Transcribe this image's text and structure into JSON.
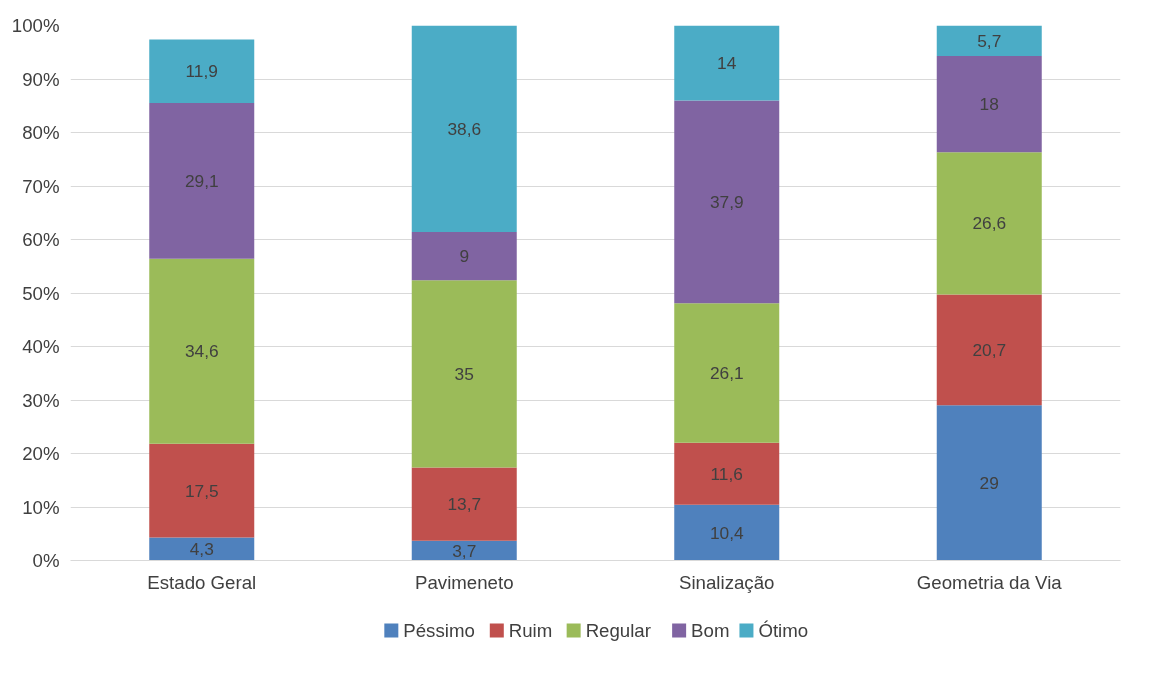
{
  "chart_data": {
    "type": "bar",
    "stacked": true,
    "categories": [
      "Estado Geral",
      "Pavimeneto",
      "Sinalização",
      "Geometria da Via"
    ],
    "series": [
      {
        "name": "Péssimo",
        "color": "#4f81bd",
        "values": [
          4.3,
          3.7,
          10.4,
          29
        ],
        "value_labels": [
          "4,3",
          "3,7",
          "10,4",
          "29"
        ]
      },
      {
        "name": "Ruim",
        "color": "#c0504d",
        "values": [
          17.5,
          13.7,
          11.6,
          20.7
        ],
        "value_labels": [
          "17,5",
          "13,7",
          "11,6",
          "20,7"
        ]
      },
      {
        "name": "Regular",
        "color": "#9bbb59",
        "values": [
          34.6,
          35,
          26.1,
          26.6
        ],
        "value_labels": [
          "34,6",
          "35",
          "26,1",
          "26,6"
        ]
      },
      {
        "name": "Bom",
        "color": "#8064a2",
        "values": [
          29.1,
          9,
          37.9,
          18
        ],
        "value_labels": [
          "29,1",
          "9",
          "37,9",
          "18"
        ]
      },
      {
        "name": "Ótimo",
        "color": "#4bacc6",
        "values": [
          11.9,
          38.6,
          14,
          5.7
        ],
        "value_labels": [
          "11,9",
          "38,6",
          "14",
          "5,7"
        ]
      }
    ],
    "ylim": [
      0,
      100
    ],
    "yticks": [
      {
        "value": 0,
        "label": "0%"
      },
      {
        "value": 10,
        "label": "10%"
      },
      {
        "value": 20,
        "label": "20%"
      },
      {
        "value": 30,
        "label": "30%"
      },
      {
        "value": 40,
        "label": "40%"
      },
      {
        "value": 50,
        "label": "50%"
      },
      {
        "value": 60,
        "label": "60%"
      },
      {
        "value": 70,
        "label": "70%"
      },
      {
        "value": 80,
        "label": "80%"
      },
      {
        "value": 90,
        "label": "90%"
      },
      {
        "value": 100,
        "label": "100%"
      }
    ],
    "grid": "y",
    "legend": "bottom",
    "data_labels": false
  }
}
